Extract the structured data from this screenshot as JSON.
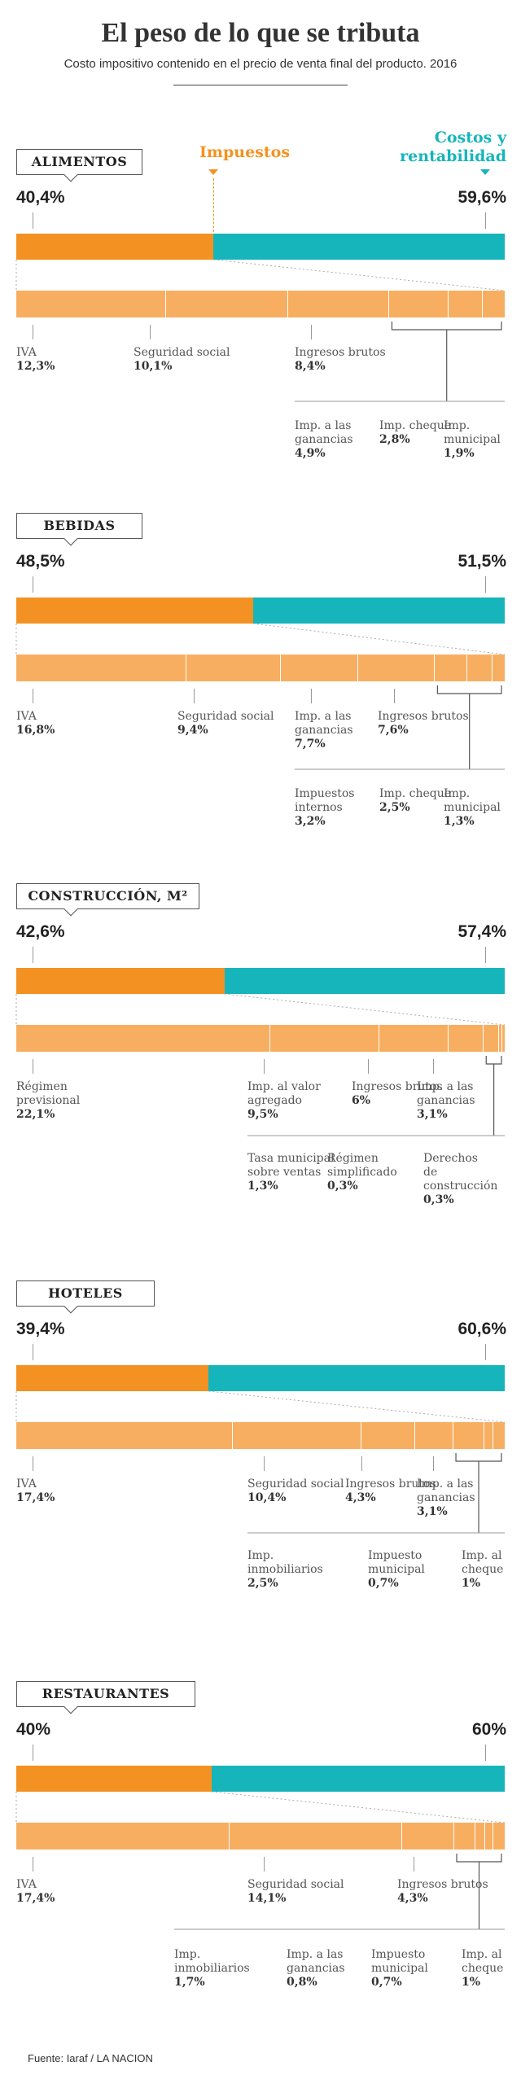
{
  "header": {
    "title": "El peso de lo que se tributa",
    "subtitle": "Costo impositivo contenido en el precio de venta final del producto. 2016"
  },
  "legend": {
    "impuestos": "Impuestos",
    "costos_line1": "Costos y",
    "costos_line2": "rentabilidad"
  },
  "colors": {
    "impuestos": "#f39222",
    "costos": "#15b5bb",
    "subbar": "#f8ae60"
  },
  "sections": [
    {
      "label": "ALIMENTOS",
      "pct_left": "40,4%",
      "pct_right": "59,6%",
      "items": [
        {
          "name": "IVA",
          "value": "12,3%"
        },
        {
          "name": "Seguridad social",
          "value": "10,1%"
        },
        {
          "name": "Ingresos brutos",
          "value": "8,4%"
        },
        {
          "name": "Imp. a las ganancias",
          "value": "4,9%"
        },
        {
          "name": "Imp. cheque",
          "value": "2,8%"
        },
        {
          "name": "Imp. municipal",
          "value": "1,9%"
        }
      ]
    },
    {
      "label": "BEBIDAS",
      "pct_left": "48,5%",
      "pct_right": "51,5%",
      "items": [
        {
          "name": "IVA",
          "value": "16,8%"
        },
        {
          "name": "Seguridad social",
          "value": "9,4%"
        },
        {
          "name": "Imp. a las ganancias",
          "value": "7,7%"
        },
        {
          "name": "Ingresos brutos",
          "value": "7,6%"
        },
        {
          "name": "Impuestos internos",
          "value": "3,2%"
        },
        {
          "name": "Imp. cheque",
          "value": "2,5%"
        },
        {
          "name": "Imp. municipal",
          "value": "1,3%"
        }
      ]
    },
    {
      "label": "CONSTRUCCIÓN, M²",
      "pct_left": "42,6%",
      "pct_right": "57,4%",
      "items": [
        {
          "name": "Régimen previsional",
          "value": "22,1%"
        },
        {
          "name": "Imp. al valor agregado",
          "value": "9,5%"
        },
        {
          "name": "Ingresos brutos",
          "value": "6%"
        },
        {
          "name": "Imp. a las ganancias",
          "value": "3,1%"
        },
        {
          "name": "Tasa municipal sobre ventas",
          "value": "1,3%"
        },
        {
          "name": "Régimen simplificado",
          "value": "0,3%"
        },
        {
          "name": "Derechos de construcción",
          "value": "0,3%"
        }
      ]
    },
    {
      "label": "HOTELES",
      "pct_left": "39,4%",
      "pct_right": "60,6%",
      "items": [
        {
          "name": "IVA",
          "value": "17,4%"
        },
        {
          "name": "Seguridad social",
          "value": "10,4%"
        },
        {
          "name": "Ingresos brutos",
          "value": "4,3%"
        },
        {
          "name": "Imp. a las ganancias",
          "value": "3,1%"
        },
        {
          "name": "Imp. inmobiliarios",
          "value": "2,5%"
        },
        {
          "name": "Impuesto municipal",
          "value": "0,7%"
        },
        {
          "name": "Imp. al cheque",
          "value": "1%"
        }
      ]
    },
    {
      "label": "RESTAURANTES",
      "pct_left": "40%",
      "pct_right": "60%",
      "items": [
        {
          "name": "IVA",
          "value": "17,4%"
        },
        {
          "name": "Seguridad social",
          "value": "14,1%"
        },
        {
          "name": "Ingresos brutos",
          "value": "4,3%"
        },
        {
          "name": "Imp. inmobiliarios",
          "value": "1,7%"
        },
        {
          "name": "Imp. a las ganancias",
          "value": "0,8%"
        },
        {
          "name": "Impuesto municipal",
          "value": "0,7%"
        },
        {
          "name": "Imp. al cheque",
          "value": "1%"
        }
      ]
    }
  ],
  "source": "Fuente: Iaraf / LA NACION",
  "chart_data": {
    "type": "bar",
    "title": "El peso de lo que se tributa",
    "subtitle": "Costo impositivo contenido en el precio de venta final del producto. 2016",
    "categories": [
      "ALIMENTOS",
      "BEBIDAS",
      "CONSTRUCCIÓN, M²",
      "HOTELES",
      "RESTAURANTES"
    ],
    "series": [
      {
        "name": "Impuestos",
        "values": [
          40.4,
          48.5,
          42.6,
          39.4,
          40
        ]
      },
      {
        "name": "Costos y rentabilidad",
        "values": [
          59.6,
          51.5,
          57.4,
          60.6,
          60
        ]
      }
    ],
    "breakdown": [
      [
        12.3,
        10.1,
        8.4,
        4.9,
        2.8,
        1.9
      ],
      [
        16.8,
        9.4,
        7.7,
        7.6,
        3.2,
        2.5,
        1.3
      ],
      [
        22.1,
        9.5,
        6,
        3.1,
        1.3,
        0.3,
        0.3
      ],
      [
        17.4,
        10.4,
        4.3,
        3.1,
        2.5,
        0.7,
        1
      ],
      [
        17.4,
        14.1,
        4.3,
        1.7,
        0.8,
        0.7,
        1
      ]
    ],
    "stacked": true,
    "orientation": "horizontal"
  }
}
